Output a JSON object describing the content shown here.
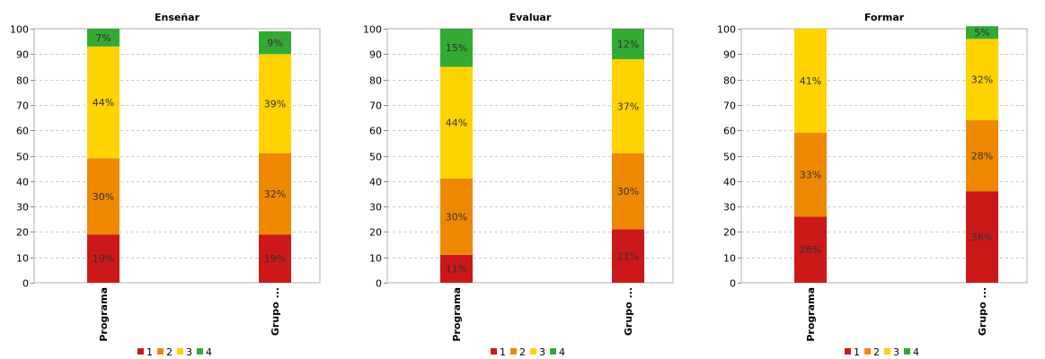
{
  "colors": {
    "1": "#cc1818",
    "2": "#ee8800",
    "3": "#ffd200",
    "4": "#33aa33"
  },
  "chart_data": [
    {
      "type": "bar",
      "stacked": true,
      "title": "Enseñar",
      "categories": [
        "Programa",
        "Grupo ..."
      ],
      "ylim": [
        0,
        100
      ],
      "yticks": [
        0,
        10,
        20,
        30,
        40,
        50,
        60,
        70,
        80,
        90,
        100
      ],
      "grid": true,
      "legend": "bottom",
      "series": [
        {
          "name": "1",
          "values": [
            19,
            19
          ],
          "labels": [
            "19%",
            "19%"
          ]
        },
        {
          "name": "2",
          "values": [
            30,
            32
          ],
          "labels": [
            "30%",
            "32%"
          ]
        },
        {
          "name": "3",
          "values": [
            44,
            39
          ],
          "labels": [
            "44%",
            "39%"
          ]
        },
        {
          "name": "4",
          "values": [
            7,
            9
          ],
          "labels": [
            "7%",
            "9%"
          ]
        }
      ]
    },
    {
      "type": "bar",
      "stacked": true,
      "title": "Evaluar",
      "categories": [
        "Programa",
        "Grupo ..."
      ],
      "ylim": [
        0,
        100
      ],
      "yticks": [
        0,
        10,
        20,
        30,
        40,
        50,
        60,
        70,
        80,
        90,
        100
      ],
      "grid": true,
      "legend": "bottom",
      "series": [
        {
          "name": "1",
          "values": [
            11,
            21
          ],
          "labels": [
            "11%",
            "21%"
          ]
        },
        {
          "name": "2",
          "values": [
            30,
            30
          ],
          "labels": [
            "30%",
            "30%"
          ]
        },
        {
          "name": "3",
          "values": [
            44,
            37
          ],
          "labels": [
            "44%",
            "37%"
          ]
        },
        {
          "name": "4",
          "values": [
            15,
            12
          ],
          "labels": [
            "15%",
            "12%"
          ]
        }
      ]
    },
    {
      "type": "bar",
      "stacked": true,
      "title": "Formar",
      "categories": [
        "Programa",
        "Grupo ..."
      ],
      "ylim": [
        0,
        100
      ],
      "yticks": [
        0,
        10,
        20,
        30,
        40,
        50,
        60,
        70,
        80,
        90,
        100
      ],
      "grid": true,
      "legend": "bottom",
      "series": [
        {
          "name": "1",
          "values": [
            26,
            36
          ],
          "labels": [
            "26%",
            "36%"
          ]
        },
        {
          "name": "2",
          "values": [
            33,
            28
          ],
          "labels": [
            "33%",
            "28%"
          ]
        },
        {
          "name": "3",
          "values": [
            41,
            32
          ],
          "labels": [
            "41%",
            "32%"
          ]
        },
        {
          "name": "4",
          "values": [
            0,
            5
          ],
          "labels": [
            "",
            "5%"
          ]
        }
      ]
    }
  ]
}
